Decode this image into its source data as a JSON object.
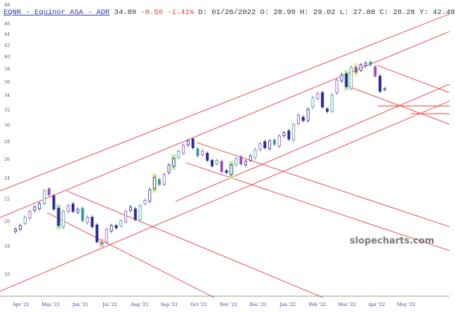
{
  "header": {
    "symbol_link": "EQNR - Equinor ASA - ADR",
    "last": "34.89",
    "change": "-0.50",
    "change_pct": "-1.41%",
    "ohlc": "D: 01/26/2022 O: 28.99 H: 29.02 L: 27.88 C: 28.28 Y: 42.48"
  },
  "watermark": "slopecharts.com",
  "colors": {
    "trendline": "#e83a3a",
    "up": "#2a2a9a",
    "alt1": "#9a4fc0",
    "alt2": "#3a9a9a",
    "negative": "#e04040",
    "link": "#3535a8"
  },
  "chart_data": {
    "type": "candlestick",
    "scale": "log",
    "y_ticks": [
      "48",
      "46",
      "44",
      "42",
      "40",
      "38",
      "36",
      "34",
      "32",
      "30",
      "28",
      "26",
      "24",
      "22",
      "20",
      "18",
      "16"
    ],
    "x_ticks": [
      "Apr '21",
      "May '21",
      "Jun '21",
      "Jul '21",
      "Aug '21",
      "Sep '21",
      "Oct '21",
      "Nov '21",
      "Dec '21",
      "Jan '22",
      "Feb '22",
      "Mar '22",
      "Apr '22",
      "May '22"
    ],
    "closes": [
      19.3,
      19.6,
      20.3,
      20.8,
      21.2,
      21.5,
      22.7,
      22.3,
      21.0,
      19.6,
      20.8,
      21.3,
      20.8,
      21.0,
      20.0,
      20.3,
      19.5,
      18.3,
      18.2,
      19.3,
      19.6,
      19.4,
      20.0,
      20.8,
      21.2,
      20.1,
      21.3,
      21.8,
      22.8,
      24.0,
      23.3,
      24.3,
      25.3,
      26.0,
      26.8,
      27.5,
      28.0,
      27.2,
      26.3,
      26.8,
      25.8,
      25.2,
      25.8,
      24.6,
      24.5,
      25.3,
      26.0,
      25.4,
      25.7,
      26.3,
      27.0,
      27.7,
      27.2,
      28.0,
      27.6,
      28.6,
      29.0,
      28.2,
      30.0,
      31.2,
      30.5,
      32.0,
      33.6,
      34.2,
      32.3,
      31.7,
      34.0,
      36.2,
      37.0,
      35.2,
      38.2,
      37.4,
      38.6,
      38.9,
      38.6,
      36.8,
      34.5,
      34.9
    ],
    "ylim": [
      15,
      48
    ]
  }
}
